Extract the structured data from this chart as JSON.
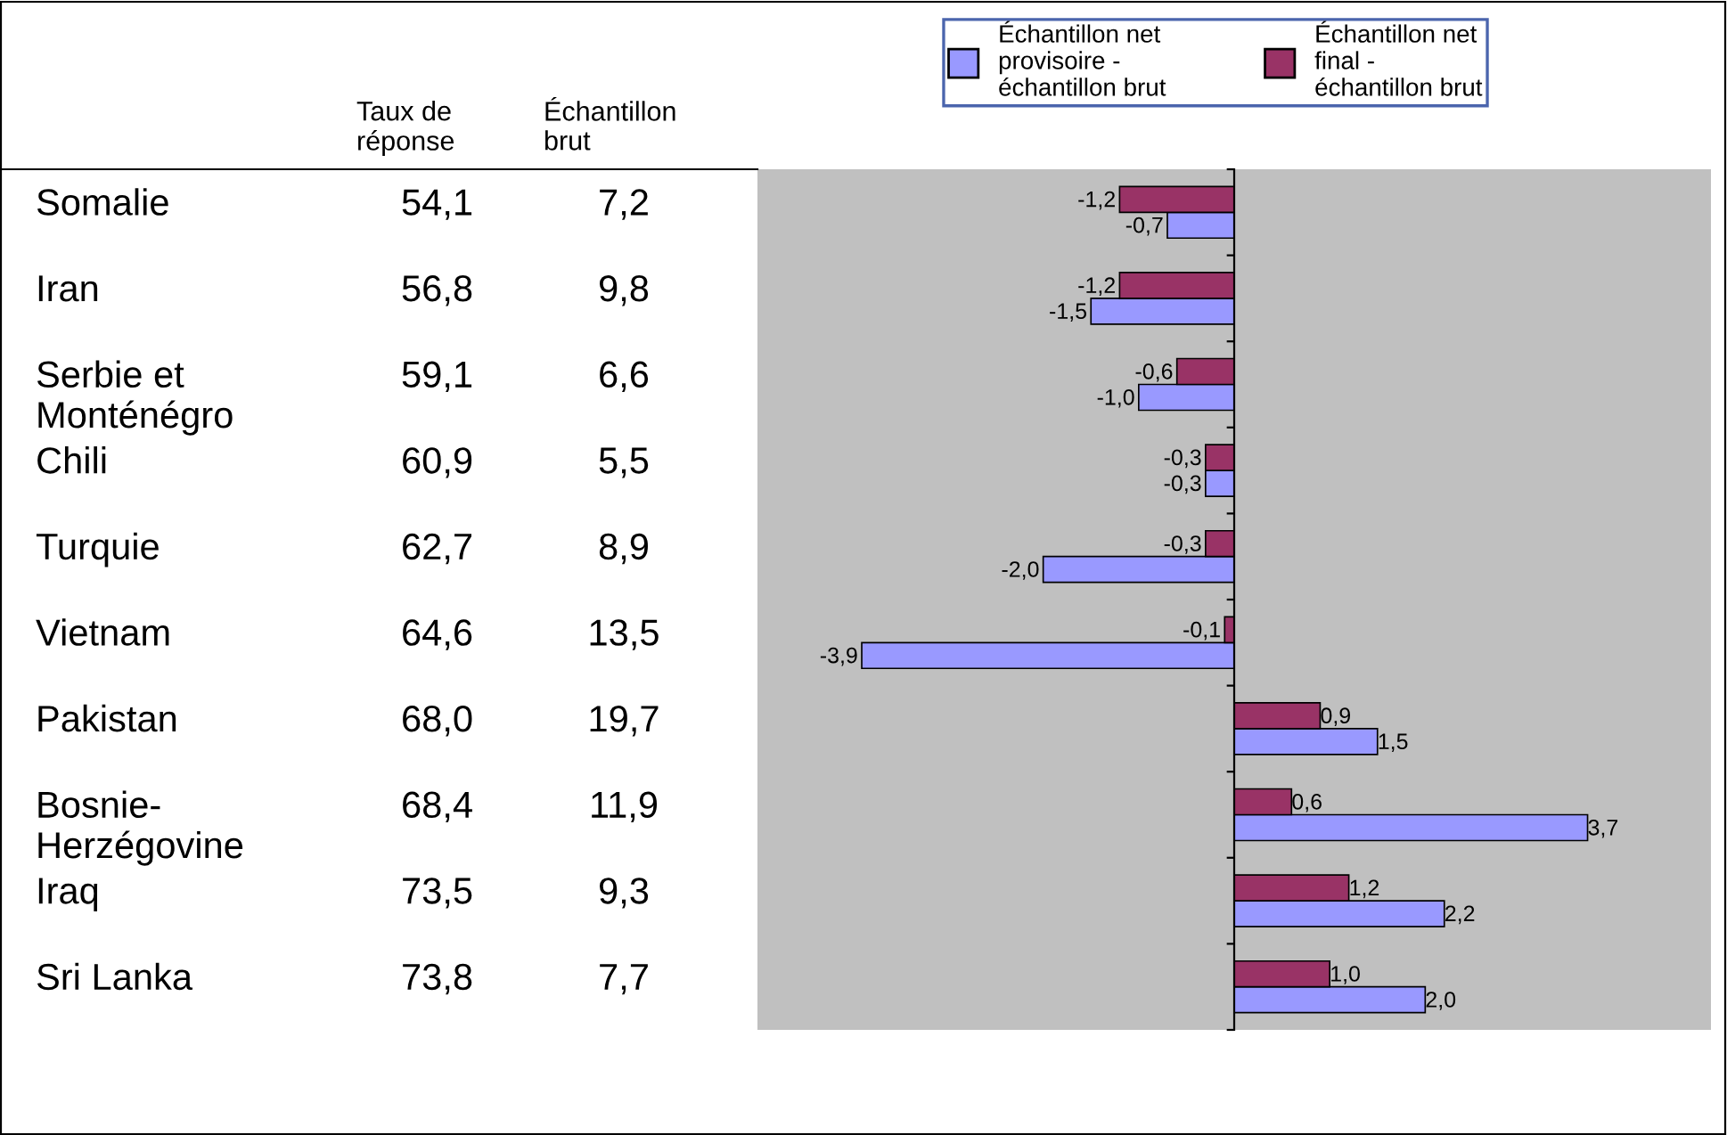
{
  "chart_data": {
    "type": "bar",
    "orientation": "horizontal",
    "categories": [
      "Somalie",
      "Iran",
      "Serbie et\nMonténégro",
      "Chili",
      "Turquie",
      "Vietnam",
      "Pakistan",
      "Bosnie-\nHerzégovine",
      "Iraq",
      "Sri Lanka"
    ],
    "series": [
      {
        "name": "Échantillon net\nprovisoire -\néchantillon brut",
        "color": "#9999ff",
        "values": [
          -0.7,
          -1.5,
          -1.0,
          -0.3,
          -2.0,
          -3.9,
          1.5,
          3.7,
          2.2,
          2.0
        ],
        "value_labels": [
          "-0,7",
          "-1,5",
          "-1,0",
          "-0,3",
          "-2,0",
          "-3,9",
          "1,5",
          "3,7",
          "2,2",
          "2,0"
        ]
      },
      {
        "name": "Échantillon net\nfinal -\néchantillon brut",
        "color": "#993366",
        "values": [
          -1.2,
          -1.2,
          -0.6,
          -0.3,
          -0.3,
          -0.1,
          0.9,
          0.6,
          1.2,
          1.0
        ],
        "value_labels": [
          "-1,2",
          "-1,2",
          "-0,6",
          "-0,3",
          "-0,3",
          "-0,1",
          "0,9",
          "0,6",
          "1,2",
          "1,0"
        ]
      }
    ],
    "annotations": [
      "Taux de\nréponse",
      "Échantillon\nbrut",
      "54,1",
      "7,2",
      "56,8",
      "9,8",
      "59,1",
      "6,6",
      "60,9",
      "5,5",
      "62,7",
      "8,9",
      "64,6",
      "13,5",
      "68,0",
      "19,7",
      "68,4",
      "11,9",
      "73,5",
      "9,3",
      "73,8",
      "7,7"
    ],
    "tick_labels": false,
    "grid": false,
    "legend": "top"
  }
}
